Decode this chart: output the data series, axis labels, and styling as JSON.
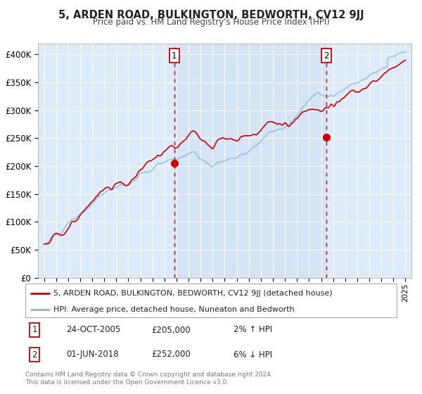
{
  "title": "5, ARDEN ROAD, BULKINGTON, BEDWORTH, CV12 9JJ",
  "subtitle": "Price paid vs. HM Land Registry's House Price Index (HPI)",
  "background_color": "#ffffff",
  "plot_bg_color": "#ddeaf7",
  "shade_color": "#cce0f5",
  "grid_color": "#ffffff",
  "hpi_color": "#88b8e0",
  "price_color": "#cc0000",
  "marker1_date": 2005.82,
  "marker1_value": 205000,
  "marker2_date": 2018.42,
  "marker2_value": 252000,
  "ylim": [
    0,
    420000
  ],
  "xlim": [
    1994.5,
    2025.5
  ],
  "yticks": [
    0,
    50000,
    100000,
    150000,
    200000,
    250000,
    300000,
    350000,
    400000
  ],
  "ytick_labels": [
    "£0",
    "£50K",
    "£100K",
    "£150K",
    "£200K",
    "£250K",
    "£300K",
    "£350K",
    "£400K"
  ],
  "legend_line1": "5, ARDEN ROAD, BULKINGTON, BEDWORTH, CV12 9JJ (detached house)",
  "legend_line2": "HPI: Average price, detached house, Nuneaton and Bedworth",
  "table_row1": [
    "1",
    "24-OCT-2005",
    "£205,000",
    "2% ↑ HPI"
  ],
  "table_row2": [
    "2",
    "01-JUN-2018",
    "£252,000",
    "6% ↓ HPI"
  ],
  "footnote": "Contains HM Land Registry data © Crown copyright and database right 2024.\nThis data is licensed under the Open Government Licence v3.0."
}
